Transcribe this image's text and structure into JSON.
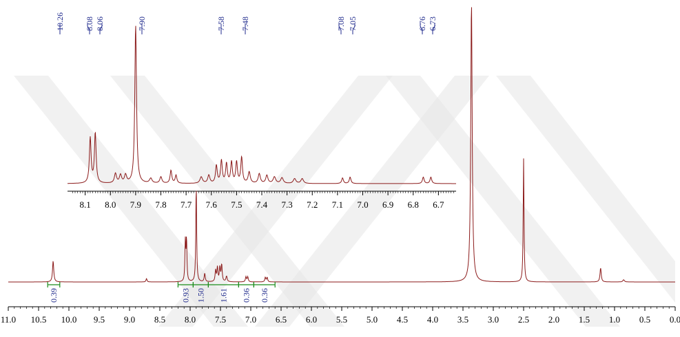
{
  "chart_data": {
    "type": "line",
    "title": "",
    "xlabel": "",
    "ylabel": "",
    "colors": {
      "trace": "#8b1a1a",
      "labels": "#1f2a8c",
      "integral": "#1a8c1a",
      "axis": "#000000",
      "watermark": "#e8e8e8"
    },
    "main": {
      "xlim": [
        11.0,
        0.0
      ],
      "x_ticks": [
        "11.0",
        "10.5",
        "10.0",
        "9.5",
        "9.0",
        "8.5",
        "8.0",
        "7.5",
        "7.0",
        "6.5",
        "6.0",
        "5.5",
        "5.0",
        "4.5",
        "4.0",
        "3.5",
        "3.0",
        "2.5",
        "2.0",
        "1.5",
        "1.0",
        "0.5",
        "0.0"
      ],
      "peaks": [
        {
          "ppm": 10.26,
          "height": 0.075,
          "width": 0.012
        },
        {
          "ppm": 8.72,
          "height": 0.012,
          "width": 0.01
        },
        {
          "ppm": 8.08,
          "height": 0.14,
          "width": 0.008
        },
        {
          "ppm": 8.06,
          "height": 0.15,
          "width": 0.008
        },
        {
          "ppm": 7.9,
          "height": 0.35,
          "width": 0.008
        },
        {
          "ppm": 7.76,
          "height": 0.03,
          "width": 0.01
        },
        {
          "ppm": 7.58,
          "height": 0.04,
          "width": 0.01
        },
        {
          "ppm": 7.55,
          "height": 0.05,
          "width": 0.01
        },
        {
          "ppm": 7.51,
          "height": 0.05,
          "width": 0.01
        },
        {
          "ppm": 7.48,
          "height": 0.06,
          "width": 0.01
        },
        {
          "ppm": 7.4,
          "height": 0.02,
          "width": 0.012
        },
        {
          "ppm": 7.08,
          "height": 0.018,
          "width": 0.01
        },
        {
          "ppm": 7.05,
          "height": 0.018,
          "width": 0.01
        },
        {
          "ppm": 6.76,
          "height": 0.016,
          "width": 0.01
        },
        {
          "ppm": 6.73,
          "height": 0.016,
          "width": 0.01
        },
        {
          "ppm": 3.36,
          "height": 1.0,
          "width": 0.014
        },
        {
          "ppm": 2.5,
          "height": 0.44,
          "width": 0.008
        },
        {
          "ppm": 1.23,
          "height": 0.05,
          "width": 0.012
        },
        {
          "ppm": 0.85,
          "height": 0.008,
          "width": 0.015
        }
      ],
      "integrals": [
        {
          "label": "0.39",
          "from": 10.35,
          "to": 10.15
        },
        {
          "label": "0.93",
          "from": 8.2,
          "to": 7.95
        },
        {
          "label": "1.50",
          "from": 7.95,
          "to": 7.7
        },
        {
          "label": "1.61",
          "from": 7.7,
          "to": 7.2
        },
        {
          "label": "0.36",
          "from": 7.2,
          "to": 6.95
        },
        {
          "label": "0.36",
          "from": 6.95,
          "to": 6.6
        }
      ]
    },
    "inset": {
      "xlim": [
        8.17,
        6.63
      ],
      "x_ticks": [
        "8.1",
        "8.0",
        "7.9",
        "7.8",
        "7.7",
        "7.6",
        "7.5",
        "7.4",
        "7.3",
        "7.2",
        "7.1",
        "7.0",
        "6.9",
        "6.8",
        "6.7"
      ],
      "peaks": [
        {
          "ppm": 8.08,
          "height": 0.28,
          "width": 0.004
        },
        {
          "ppm": 8.06,
          "height": 0.31,
          "width": 0.004
        },
        {
          "ppm": 7.98,
          "height": 0.06,
          "width": 0.005
        },
        {
          "ppm": 7.96,
          "height": 0.05,
          "width": 0.005
        },
        {
          "ppm": 7.94,
          "height": 0.05,
          "width": 0.005
        },
        {
          "ppm": 7.9,
          "height": 0.98,
          "width": 0.004
        },
        {
          "ppm": 7.84,
          "height": 0.03,
          "width": 0.006
        },
        {
          "ppm": 7.8,
          "height": 0.04,
          "width": 0.005
        },
        {
          "ppm": 7.76,
          "height": 0.08,
          "width": 0.004
        },
        {
          "ppm": 7.74,
          "height": 0.05,
          "width": 0.004
        },
        {
          "ppm": 7.64,
          "height": 0.04,
          "width": 0.006
        },
        {
          "ppm": 7.61,
          "height": 0.05,
          "width": 0.005
        },
        {
          "ppm": 7.58,
          "height": 0.11,
          "width": 0.004
        },
        {
          "ppm": 7.56,
          "height": 0.14,
          "width": 0.004
        },
        {
          "ppm": 7.54,
          "height": 0.12,
          "width": 0.004
        },
        {
          "ppm": 7.52,
          "height": 0.13,
          "width": 0.004
        },
        {
          "ppm": 7.5,
          "height": 0.13,
          "width": 0.004
        },
        {
          "ppm": 7.48,
          "height": 0.16,
          "width": 0.004
        },
        {
          "ppm": 7.45,
          "height": 0.07,
          "width": 0.005
        },
        {
          "ppm": 7.41,
          "height": 0.06,
          "width": 0.005
        },
        {
          "ppm": 7.38,
          "height": 0.05,
          "width": 0.005
        },
        {
          "ppm": 7.35,
          "height": 0.04,
          "width": 0.006
        },
        {
          "ppm": 7.32,
          "height": 0.035,
          "width": 0.006
        },
        {
          "ppm": 7.27,
          "height": 0.03,
          "width": 0.006
        },
        {
          "ppm": 7.24,
          "height": 0.03,
          "width": 0.006
        },
        {
          "ppm": 7.08,
          "height": 0.035,
          "width": 0.004
        },
        {
          "ppm": 7.05,
          "height": 0.04,
          "width": 0.004
        },
        {
          "ppm": 6.76,
          "height": 0.04,
          "width": 0.004
        },
        {
          "ppm": 6.73,
          "height": 0.04,
          "width": 0.004
        }
      ]
    },
    "peak_labels": {
      "groups": [
        {
          "labels": [
            "10.26"
          ],
          "ppms": [
            10.26
          ]
        },
        {
          "labels": [
            "8.08",
            "8.06"
          ],
          "ppms": [
            8.08,
            8.06
          ]
        },
        {
          "labels": [
            "7.90"
          ],
          "ppms": [
            7.9
          ]
        },
        {
          "labels": [
            "7.58"
          ],
          "ppms": [
            7.58
          ]
        },
        {
          "labels": [
            "7.48"
          ],
          "ppms": [
            7.48
          ]
        },
        {
          "labels": [
            "7.08",
            "7.05"
          ],
          "ppms": [
            7.08,
            7.05
          ]
        },
        {
          "labels": [
            "6.76",
            "6.73"
          ],
          "ppms": [
            6.76,
            6.73
          ]
        }
      ]
    }
  }
}
